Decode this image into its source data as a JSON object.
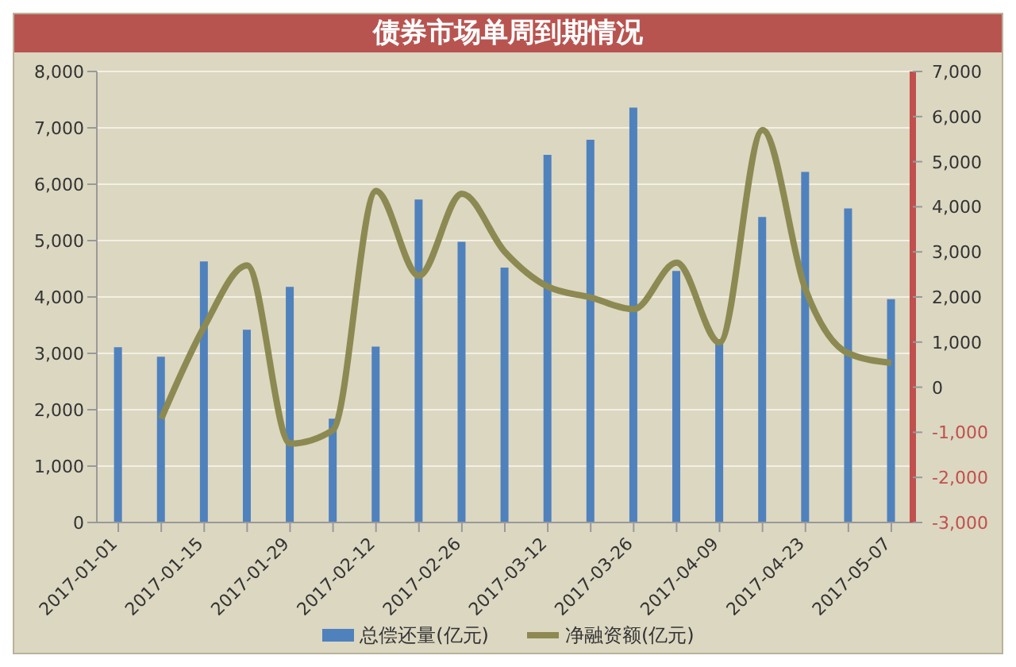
{
  "chart_data": {
    "type": "bar",
    "title": "债券市场单周到期情况",
    "categories": [
      "2017-01-01",
      null,
      "2017-01-15",
      null,
      "2017-01-29",
      null,
      "2017-02-12",
      null,
      "2017-02-26",
      null,
      "2017-03-12",
      null,
      "2017-03-26",
      null,
      "2017-04-09",
      null,
      "2017-04-23",
      null,
      "2017-05-07"
    ],
    "series": [
      {
        "name": "总偿还量(亿元)",
        "color": "#4f81bd",
        "values": [
          3110,
          2940,
          4630,
          3420,
          4180,
          1840,
          3120,
          5730,
          4980,
          4520,
          6520,
          6790,
          7360,
          4460,
          3250,
          5420,
          6220,
          5570,
          3960
        ]
      },
      {
        "name": "净融资额(亿元)",
        "type": "line",
        "axis": "y2",
        "color": "#8c8a52",
        "values": [
          null,
          -700,
          1340,
          2700,
          -1250,
          -950,
          4350,
          2470,
          4290,
          3000,
          2230,
          1990,
          1730,
          2760,
          990,
          5700,
          2170,
          750,
          540
        ]
      }
    ],
    "ylim": [
      0,
      8000
    ],
    "yticks": [
      0,
      {
        "value": 1000,
        "label": "1,000"
      },
      {
        "value": 2000,
        "label": "2,000"
      },
      {
        "value": 3000,
        "label": "3,000"
      },
      {
        "value": 4000,
        "label": "4,000"
      },
      {
        "value": 5000,
        "label": "5,000"
      },
      {
        "value": 6000,
        "label": "6,000"
      },
      {
        "value": 7000,
        "label": "7,000"
      },
      {
        "value": 8000,
        "label": "8,000"
      }
    ],
    "y2lim": [
      -3000,
      7000
    ],
    "y2ticks": [
      {
        "value": -3000,
        "label": "-3,000"
      },
      {
        "value": -2000,
        "label": "-2,000"
      },
      {
        "value": -1000,
        "label": "-1,000"
      },
      0,
      {
        "value": 1000,
        "label": "1,000"
      },
      {
        "value": 2000,
        "label": "2,000"
      },
      {
        "value": 3000,
        "label": "3,000"
      },
      {
        "value": 4000,
        "label": "4,000"
      },
      {
        "value": 5000,
        "label": "5,000"
      },
      {
        "value": 6000,
        "label": "6,000"
      },
      {
        "value": 7000,
        "label": "7,000"
      }
    ],
    "grid": "y",
    "legend": "bottom",
    "marker": "none"
  }
}
